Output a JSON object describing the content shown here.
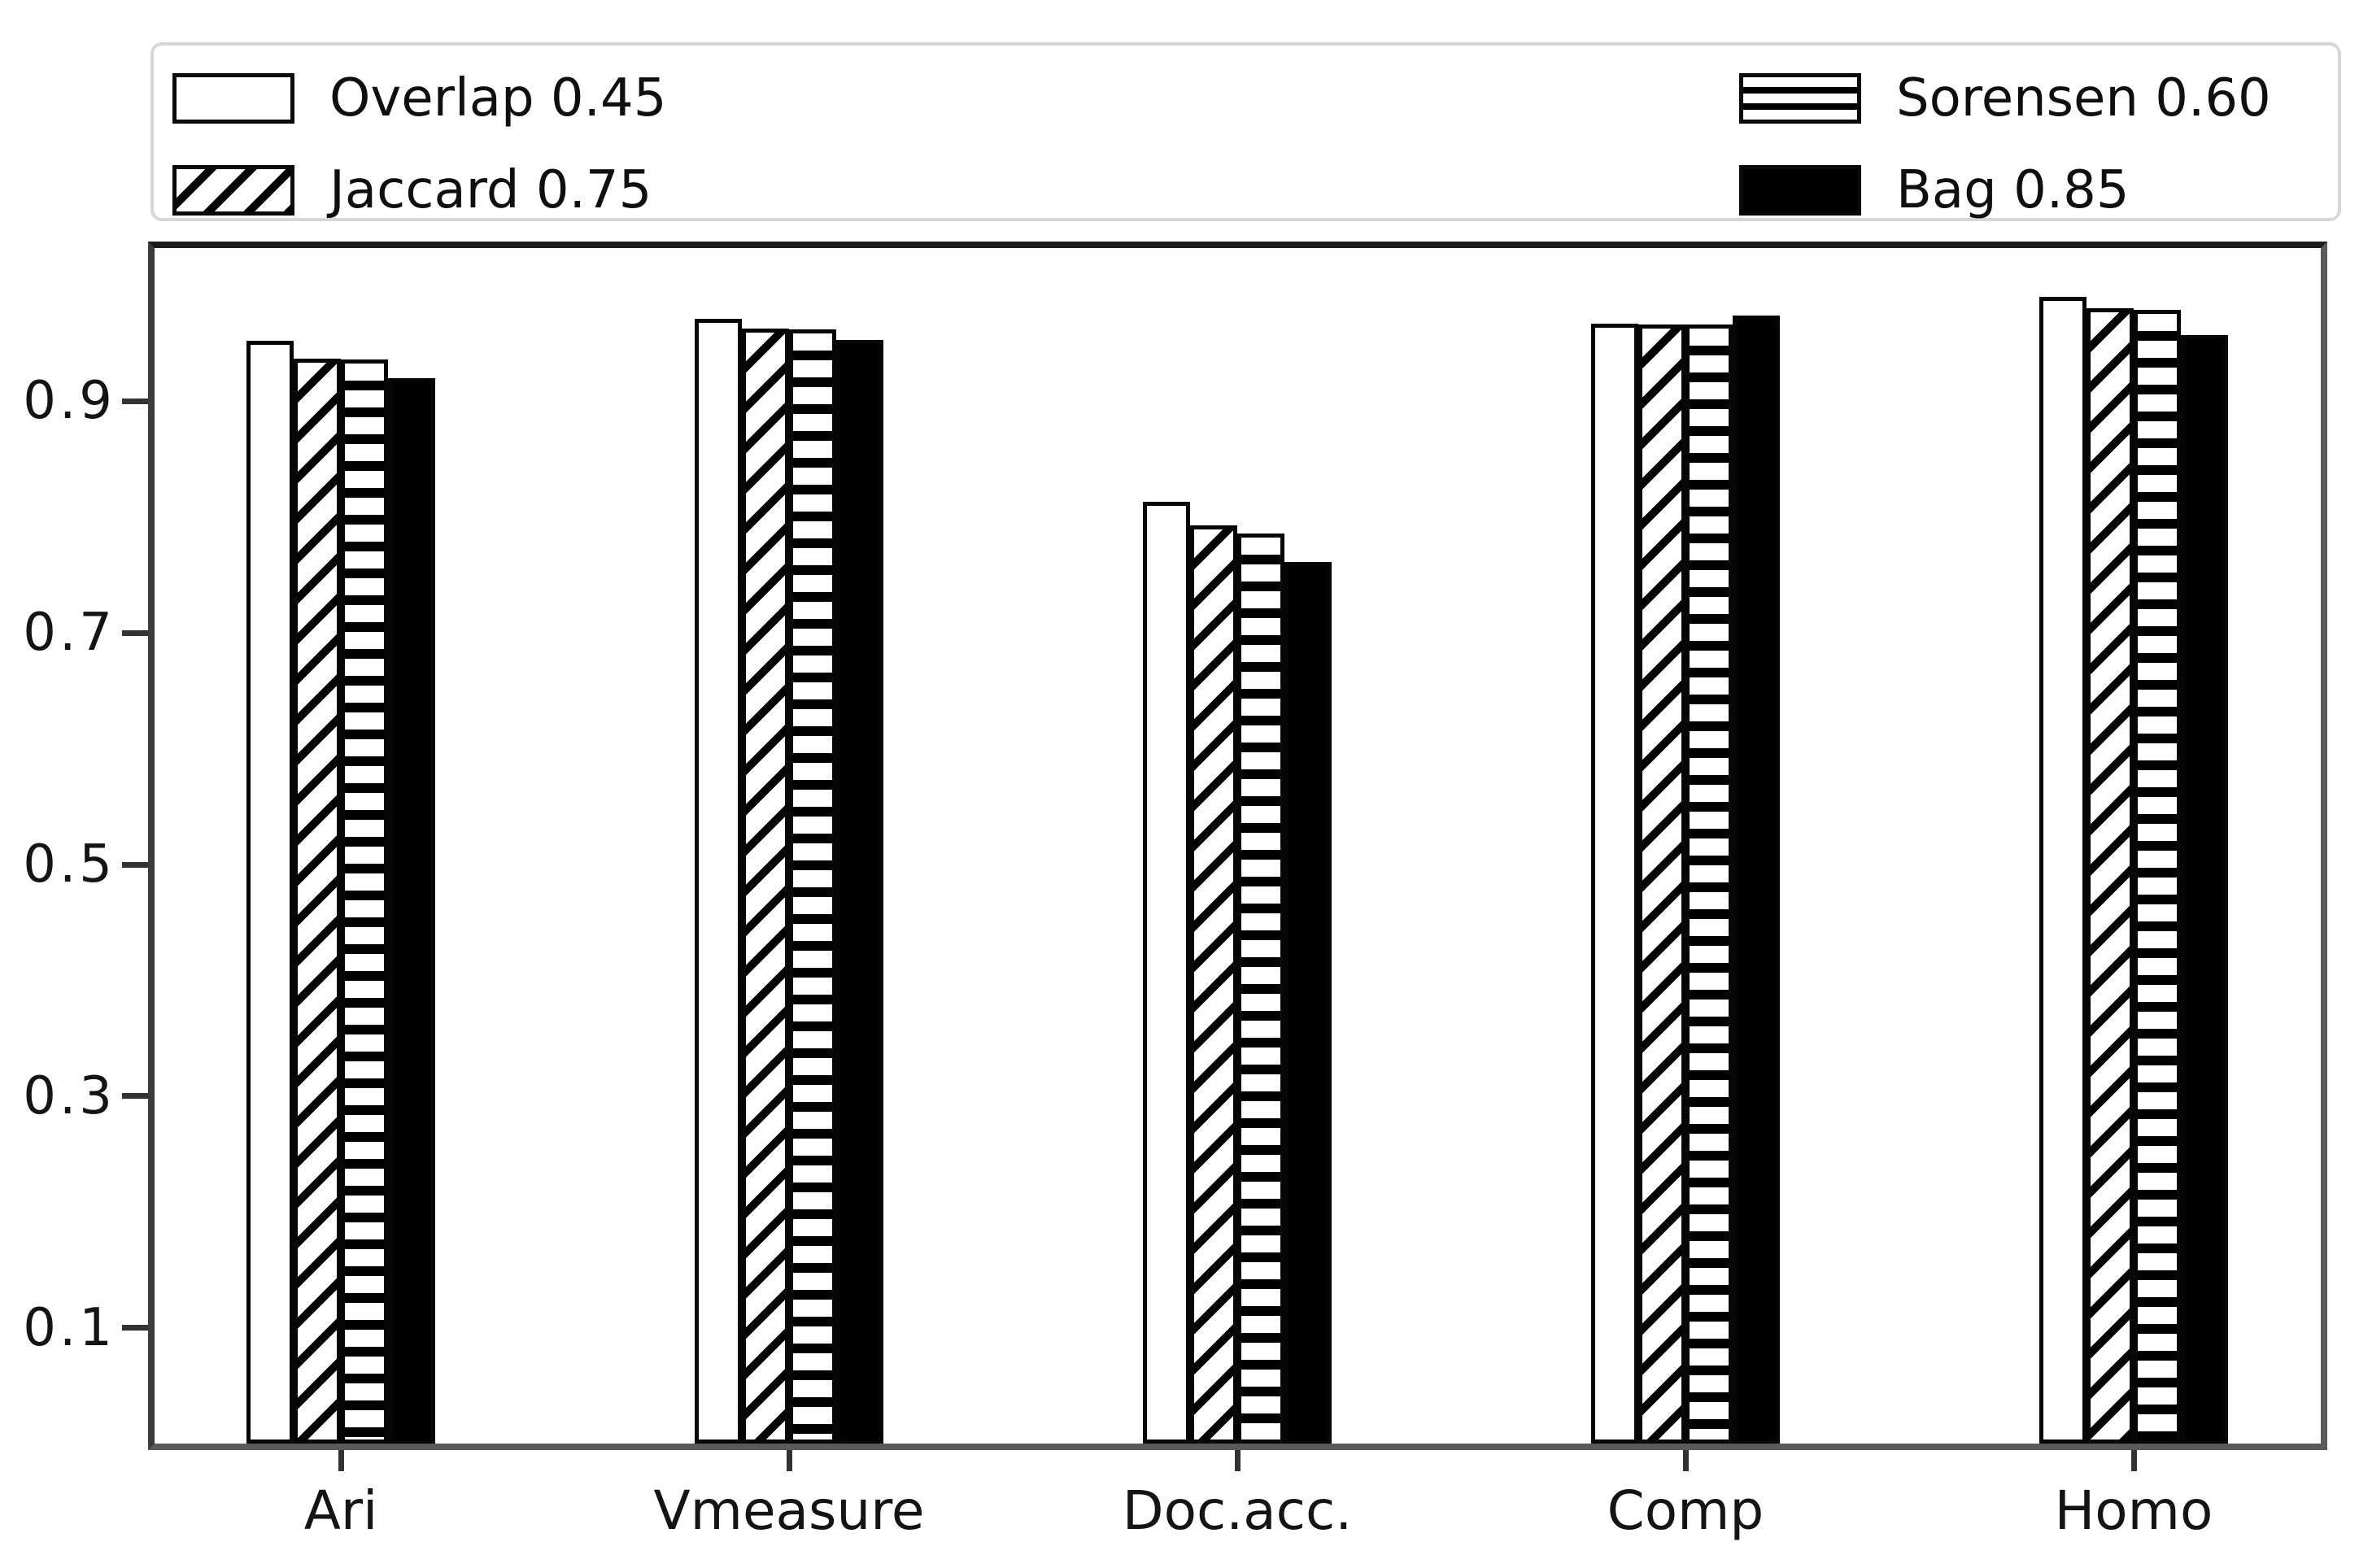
{
  "chart_data": {
    "type": "bar",
    "title": "",
    "xlabel": "",
    "ylabel": "",
    "categories": [
      "Ari",
      "Vmeasure",
      "Doc.acc.",
      "Comp",
      "Homo"
    ],
    "series": [
      {
        "name": "Overlap 0.45",
        "hatch": "none",
        "values": [
          0.952,
          0.971,
          0.813,
          0.967,
          0.99
        ]
      },
      {
        "name": "Jaccard 0.75",
        "hatch": "diagonal",
        "values": [
          0.937,
          0.963,
          0.793,
          0.966,
          0.98
        ]
      },
      {
        "name": "Sorensen 0.60",
        "hatch": "horizontal",
        "values": [
          0.936,
          0.962,
          0.786,
          0.966,
          0.979
        ]
      },
      {
        "name": "Bag 0.85",
        "hatch": "solid",
        "values": [
          0.92,
          0.953,
          0.761,
          0.974,
          0.957
        ]
      }
    ],
    "y_ticks": [
      0.1,
      0.3,
      0.5,
      0.7,
      0.9
    ],
    "y_tick_labels": [
      "0.1",
      "0.3",
      "0.5",
      "0.7",
      "0.9"
    ],
    "ylim": [
      0,
      1.04
    ],
    "grid": false,
    "legend_position": "top",
    "legend_columns": 2,
    "colors": {
      "foreground": "#000000",
      "background": "#ffffff",
      "bar_edge": "#060606",
      "spine": "#3c3c3c",
      "legend_border": "#d7d7d7"
    }
  }
}
